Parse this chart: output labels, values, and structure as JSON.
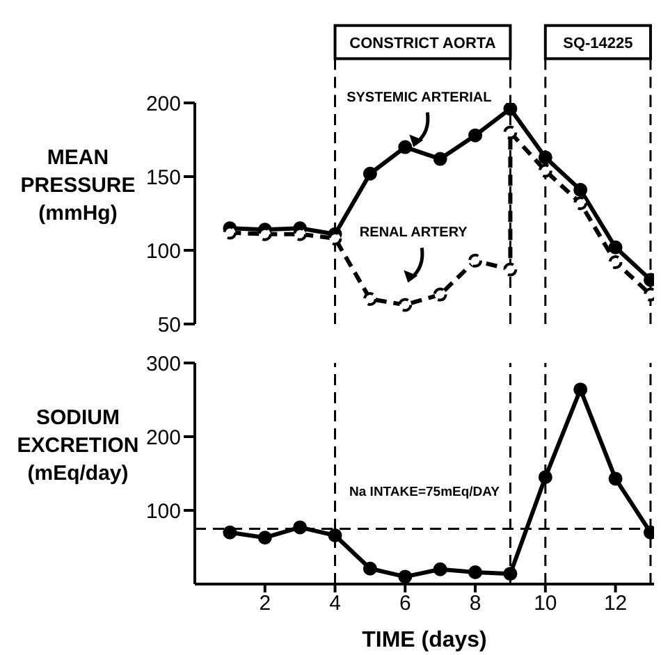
{
  "chart_data": [
    {
      "type": "line",
      "ylabel": "MEAN PRESSURE (mmHg)",
      "xlim": [
        0,
        13.1
      ],
      "ylim": [
        50,
        200
      ],
      "yticks": [
        50,
        100,
        150,
        200
      ],
      "tick_labels": "y",
      "marker": "circle",
      "grid": false,
      "legend": false,
      "series": [
        {
          "name": "SYSTEMIC ARTERIAL",
          "color": "#000000",
          "line_style": "solid",
          "x": [
            1,
            2,
            3,
            4,
            5,
            6,
            7,
            8,
            9,
            10,
            11,
            12,
            13
          ],
          "values": [
            115,
            114,
            115,
            111,
            152,
            170,
            162,
            178,
            196,
            163,
            141,
            102,
            80
          ]
        },
        {
          "name": "RENAL ARTERY",
          "color": "#000000",
          "line_style": "dashed",
          "x": [
            1,
            2,
            3,
            4,
            5,
            6,
            7,
            8,
            9,
            9,
            10,
            11,
            12,
            13
          ],
          "values": [
            112,
            111,
            111,
            108,
            67,
            63,
            70,
            93,
            87,
            180,
            154,
            132,
            92,
            70
          ]
        }
      ],
      "annotations": [
        "CONSTRICT AORTA",
        "SQ-14225"
      ],
      "ref_lines": [
        {
          "axis": "x",
          "value": 4,
          "label": null,
          "line_style": "dashed"
        },
        {
          "axis": "x",
          "value": 9,
          "label": null,
          "line_style": "dashed"
        },
        {
          "axis": "x",
          "value": 10,
          "label": null,
          "line_style": "dashed"
        },
        {
          "axis": "x",
          "value": 13,
          "label": null,
          "line_style": "dashed"
        }
      ]
    },
    {
      "type": "line",
      "ylabel": "SODIUM EXCRETION (mEq/day)",
      "xlabel": "TIME (days)",
      "xlim": [
        0,
        13.1
      ],
      "xticks": [
        2,
        4,
        6,
        8,
        10,
        12
      ],
      "ylim": [
        0,
        300
      ],
      "yticks": [
        100,
        200,
        300
      ],
      "marker": "circle",
      "grid": false,
      "legend": false,
      "series": [
        {
          "color": "#000000",
          "line_style": "solid",
          "x": [
            1,
            2,
            3,
            4,
            5,
            6,
            7,
            8,
            9,
            10,
            11,
            12,
            13
          ],
          "values": [
            70,
            63,
            77,
            66,
            21,
            10,
            20,
            16,
            14,
            145,
            264,
            143,
            70
          ]
        }
      ],
      "ref_lines": [
        {
          "axis": "y",
          "value": 75,
          "label": "Na INTAKE=75mEq/DAY",
          "line_style": "dashed"
        },
        {
          "axis": "x",
          "value": 4,
          "label": null,
          "line_style": "dashed"
        },
        {
          "axis": "x",
          "value": 9,
          "label": null,
          "line_style": "dashed"
        },
        {
          "axis": "x",
          "value": 10,
          "label": null,
          "line_style": "dashed"
        },
        {
          "axis": "x",
          "value": 13,
          "label": null,
          "line_style": "dashed"
        }
      ]
    }
  ]
}
